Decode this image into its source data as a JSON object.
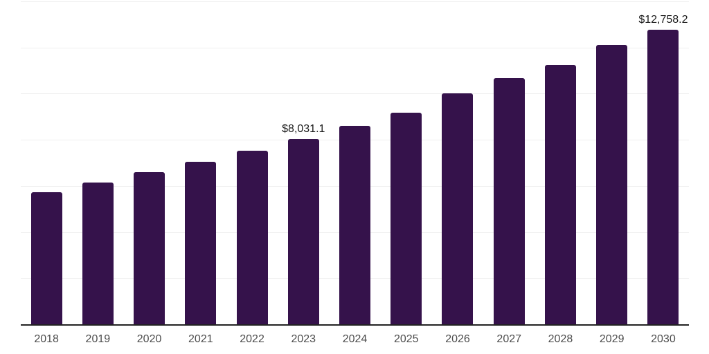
{
  "chart_data": {
    "type": "bar",
    "title": "",
    "xlabel": "",
    "ylabel": "",
    "categories": [
      "2018",
      "2019",
      "2020",
      "2021",
      "2022",
      "2023",
      "2024",
      "2025",
      "2026",
      "2027",
      "2028",
      "2029",
      "2030"
    ],
    "values": [
      5740,
      6140,
      6590,
      7060,
      7540,
      8031.1,
      8590,
      9170,
      10000,
      10670,
      11250,
      12100,
      12758.2
    ],
    "data_labels": [
      "",
      "",
      "",
      "",
      "",
      "$8,031.1",
      "",
      "",
      "",
      "",
      "",
      "",
      "$12,758.2"
    ],
    "ylim": [
      0,
      14000
    ],
    "gridline_interval": 2000,
    "grid": "horizontal-only",
    "legend": "none",
    "y_axis_tick_labels_visible": false,
    "colors": {
      "bar_fill": "#35124b",
      "axis_line": "#222222",
      "gridline": "#eeeeee",
      "x_tick_label": "#4d4d4d",
      "data_label": "#1a1a1a"
    }
  }
}
